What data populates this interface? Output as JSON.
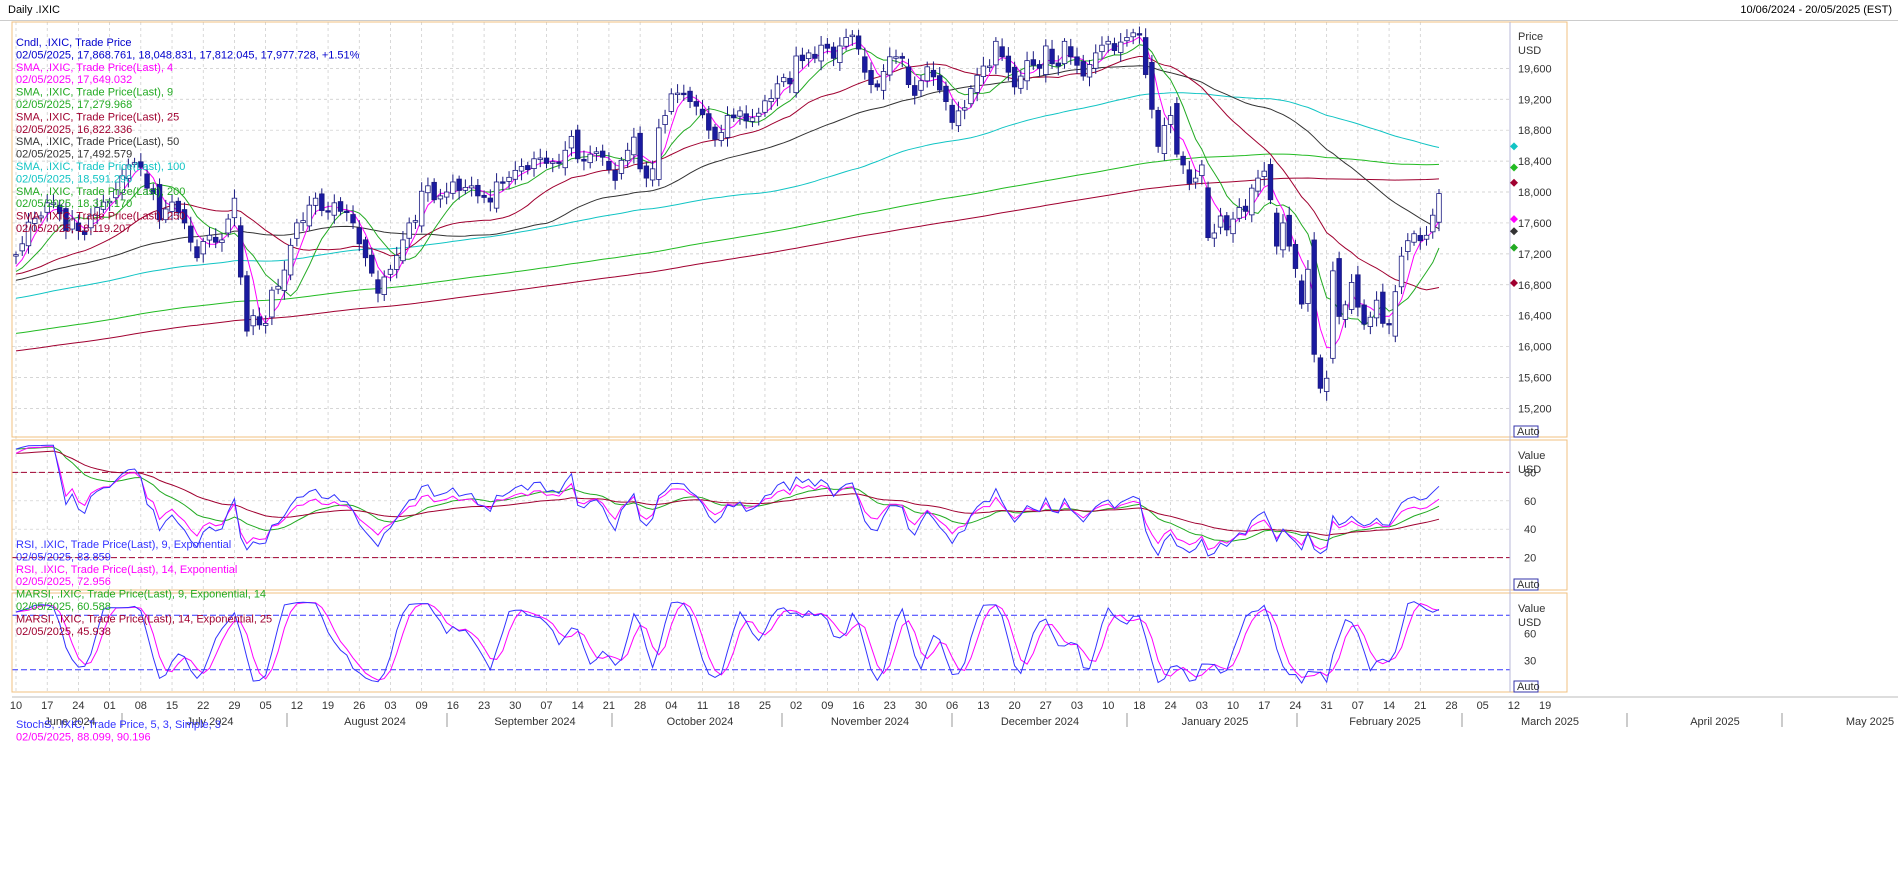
{
  "window": {
    "title": "Daily .IXIC",
    "range": "10/06/2024 - 20/05/2025 (EST)"
  },
  "colors": {
    "grid": "#c8c8c8",
    "up": "#3333ff",
    "down": "#1a1aa0",
    "sma4": "#ff00ff",
    "sma9": "#22aa22",
    "sma25": "#a00030",
    "sma50": "#333333",
    "sma100": "#11c4c4",
    "sma200": "#22bb22",
    "sma250": "#a00030",
    "rsi9": "#3333ff",
    "rsi14": "#ff00ff",
    "marsi9": "#22aa22",
    "marsi14": "#a00030",
    "stochK": "#3333ff",
    "stochD": "#ff00ff",
    "panelBorder": "#f0c080",
    "refLine": "#a00030",
    "stochRef": "#3333ff"
  },
  "legend": {
    "price": [
      {
        "text": "Cndl, .IXIC, Trade Price",
        "color": "#0000cc"
      },
      {
        "text": "02/05/2025, 17,868.761, 18,048.831, 17,812.045, 17,977.728, +1.51%",
        "color": "#0000cc",
        "extra": "+1.51%",
        "extra_color": "#008800"
      },
      {
        "text": "SMA, .IXIC, Trade Price(Last), 4",
        "color": "#ff00ff"
      },
      {
        "text": "02/05/2025, 17,649.032",
        "color": "#ff00ff"
      },
      {
        "text": "SMA, .IXIC, Trade Price(Last), 9",
        "color": "#22aa22"
      },
      {
        "text": "02/05/2025, 17,279.968",
        "color": "#22aa22"
      },
      {
        "text": "SMA, .IXIC, Trade Price(Last), 25",
        "color": "#a00030"
      },
      {
        "text": "02/05/2025, 16,822.336",
        "color": "#a00030"
      },
      {
        "text": "SMA, .IXIC, Trade Price(Last), 50",
        "color": "#333333"
      },
      {
        "text": "02/05/2025, 17,492.579",
        "color": "#333333"
      },
      {
        "text": "SMA, .IXIC, Trade Price(Last), 100",
        "color": "#11c4c4"
      },
      {
        "text": "02/05/2025, 18,591.290",
        "color": "#11c4c4"
      },
      {
        "text": "SMA, .IXIC, Trade Price(Last), 200",
        "color": "#22aa22"
      },
      {
        "text": "02/05/2025, 18,317.170",
        "color": "#22aa22"
      },
      {
        "text": "SMA, .IXIC, Trade Price(Last), 250",
        "color": "#a00030"
      },
      {
        "text": "02/05/2025, 18,119.207",
        "color": "#a00030"
      }
    ],
    "rsi": [
      {
        "text": "RSI, .IXIC, Trade Price(Last), 9, Exponential",
        "color": "#3333ff"
      },
      {
        "text": "02/05/2025, 83.859",
        "color": "#3333ff"
      },
      {
        "text": "RSI, .IXIC, Trade Price(Last), 14, Exponential",
        "color": "#ff00ff"
      },
      {
        "text": "02/05/2025, 72.956",
        "color": "#ff00ff"
      },
      {
        "text": "MARSI, .IXIC, Trade Price(Last), 9, Exponential, 14",
        "color": "#22aa22"
      },
      {
        "text": "02/05/2025, 60.588",
        "color": "#22aa22"
      },
      {
        "text": "MARSI, .IXIC, Trade Price(Last), 14, Exponential, 25",
        "color": "#a00030"
      },
      {
        "text": "02/05/2025, 45.938",
        "color": "#a00030"
      }
    ],
    "stoch": [
      {
        "text": "StochS, .IXIC, Trade Price, 5, 3, Simple, 3",
        "color": "#3333ff"
      },
      {
        "text": "02/05/2025, 88.099, 90.196",
        "color": "#ff00ff"
      }
    ]
  },
  "axes": {
    "price": {
      "label1": "Price",
      "label2": "USD",
      "ticks": [
        "19,600",
        "19,200",
        "18,800",
        "18,400",
        "18,000",
        "17,600",
        "17,200",
        "16,800",
        "16,400",
        "16,000",
        "15,600",
        "15,200"
      ],
      "tick_values": [
        19600,
        19200,
        18800,
        18400,
        18000,
        17600,
        17200,
        16800,
        16400,
        16000,
        15600,
        15200
      ],
      "ylim": [
        14830,
        20200
      ],
      "auto": "Auto"
    },
    "rsi": {
      "label1": "Value",
      "label2": "USD",
      "ticks": [
        "80",
        "60",
        "40",
        "20"
      ],
      "tick_values": [
        80,
        60,
        40,
        20
      ],
      "ylim": [
        0,
        100
      ],
      "ref_lines": [
        80,
        20
      ],
      "auto": "Auto"
    },
    "stoch": {
      "label1": "Value",
      "label2": "USD",
      "ticks": [
        "60",
        "30"
      ],
      "tick_values": [
        60,
        30
      ],
      "ylim": [
        0,
        100
      ],
      "ref_lines": [
        80,
        20
      ],
      "auto": "Auto"
    },
    "x": {
      "days": [
        "10",
        "17",
        "24",
        "01",
        "08",
        "15",
        "22",
        "29",
        "05",
        "12",
        "19",
        "26",
        "03",
        "09",
        "16",
        "23",
        "30",
        "07",
        "14",
        "21",
        "28",
        "04",
        "11",
        "18",
        "25",
        "02",
        "09",
        "16",
        "23",
        "30",
        "06",
        "13",
        "20",
        "27",
        "03",
        "10",
        "18",
        "24",
        "03",
        "10",
        "17",
        "24",
        "31",
        "07",
        "14",
        "21",
        "28",
        "05",
        "12",
        "19"
      ],
      "months": [
        "June 2024",
        "July 2024",
        "August 2024",
        "September 2024",
        "October 2024",
        "November 2024",
        "December 2024",
        "January 2025",
        "February 2025",
        "March 2025",
        "April 2025",
        "May 2025"
      ]
    }
  },
  "chart_data": [
    {
      "type": "candlestick",
      "title": "Cndl, .IXIC, Trade Price",
      "x_range": [
        "10/06/2024",
        "20/05/2025"
      ],
      "first_visible_date": "2024-06-10",
      "y_unit": "USD",
      "ylim": [
        14830,
        20200
      ],
      "note": "approximate daily close path (weekdays, 2024-06-10 .. 2025-05-02)",
      "close": [
        17190,
        17330,
        17610,
        17660,
        17690,
        17860,
        17860,
        17720,
        17500,
        17650,
        17500,
        17450,
        17700,
        17800,
        17870,
        17880,
        18030,
        18210,
        18350,
        18380,
        18320,
        18050,
        17980,
        17640,
        17780,
        17870,
        17730,
        17600,
        17350,
        17150,
        17360,
        17440,
        17350,
        17380,
        17650,
        17920,
        16900,
        16200,
        16400,
        16280,
        16300,
        16730,
        16780,
        16990,
        17310,
        17600,
        17630,
        17830,
        17920,
        17760,
        17740,
        17860,
        17750,
        17740,
        17600,
        17330,
        17150,
        16950,
        16690,
        16900,
        17000,
        17180,
        17380,
        17600,
        17630,
        18010,
        18080,
        17900,
        17950,
        18000,
        18130,
        18020,
        18060,
        18080,
        17950,
        17930,
        17870,
        18130,
        18120,
        18190,
        18280,
        18330,
        18290,
        18430,
        18440,
        18370,
        18390,
        18370,
        18540,
        18720,
        18430,
        18400,
        18490,
        18520,
        18450,
        18290,
        18150,
        18410,
        18540,
        18710,
        18300,
        18180,
        18300,
        18830,
        18990,
        19270,
        19280,
        19270,
        19170,
        19110,
        19000,
        18800,
        18680,
        18770,
        18990,
        18960,
        19050,
        18920,
        18960,
        19020,
        19180,
        19210,
        19400,
        19480,
        19400,
        19760,
        19700,
        19800,
        19730,
        19900,
        19860,
        19730,
        19890,
        20000,
        20030,
        19850,
        19550,
        19390,
        19360,
        19560,
        19750,
        19750,
        19730,
        19390,
        19250,
        19440,
        19620,
        19490,
        19320,
        19170,
        18900,
        19050,
        19090,
        19340,
        19510,
        19630,
        19630,
        19950,
        19750,
        19550,
        19360,
        19500,
        19700,
        19640,
        19600,
        19890,
        19660,
        19630,
        19950,
        19750,
        19640,
        19500,
        19650,
        19800,
        19900,
        19950,
        19830,
        19940,
        20000,
        20060,
        20030,
        19520,
        19070,
        18590,
        18860,
        18990,
        18490,
        18350,
        18110,
        18180,
        18350,
        17410,
        17470,
        17690,
        17510,
        17650,
        17800,
        17750,
        18050,
        18180,
        18270,
        17900,
        17300,
        17600,
        17300,
        17010,
        16550,
        17000,
        15900,
        15460,
        15590,
        16980,
        16390,
        16540,
        16830,
        16510,
        16290,
        16380,
        16600,
        16300,
        16280,
        16710,
        17170,
        17370,
        17460,
        17370,
        17440,
        17700,
        17980
      ],
      "sma_last": {
        "SMA 4": 17649.032,
        "SMA 9": 17279.968,
        "SMA 25": 16822.336,
        "SMA 50": 17492.579,
        "SMA 100": 18591.29,
        "SMA 200": 18317.17,
        "SMA 250": 18119.207
      },
      "last_bar": {
        "date": "02/05/2025",
        "open": 17868.761,
        "high": 18048.831,
        "low": 17812.045,
        "close": 17977.728,
        "change": "+1.51%"
      }
    },
    {
      "type": "line",
      "title": "RSI / MARSI",
      "ylim": [
        0,
        100
      ],
      "series": [
        {
          "name": "RSI 9",
          "last": 83.859
        },
        {
          "name": "RSI 14",
          "last": 72.956
        },
        {
          "name": "MARSI 9, 14",
          "last": 60.588
        },
        {
          "name": "MARSI 14, 25",
          "last": 45.938
        }
      ]
    },
    {
      "type": "line",
      "title": "StochS 5, 3, Simple, 3",
      "ylim": [
        0,
        100
      ],
      "series": [
        {
          "name": "%K",
          "last": 88.099
        },
        {
          "name": "%D",
          "last": 90.196
        }
      ]
    }
  ]
}
